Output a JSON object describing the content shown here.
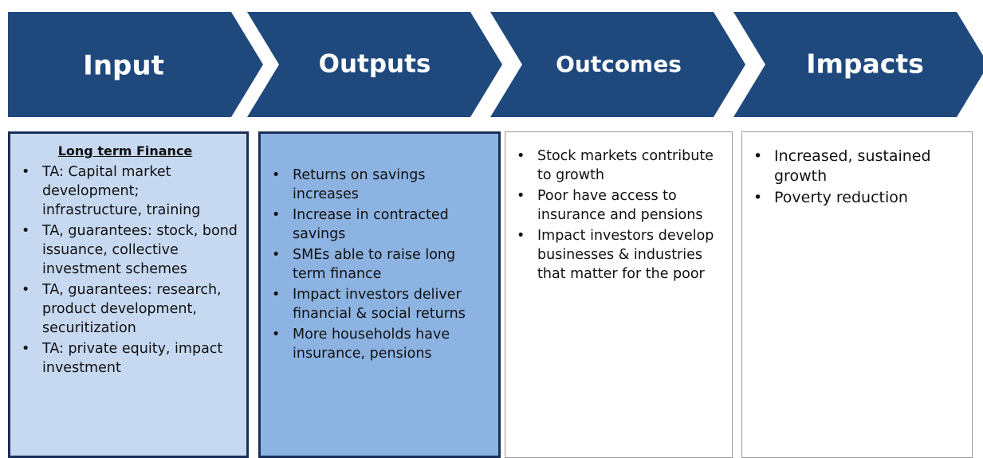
{
  "stages": [
    {
      "header": "Input",
      "title": "Long term Finance",
      "items": [
        "TA: Capital market development; infrastructure, training",
        "TA, guarantees: stock, bond issuance,  collective investment schemes",
        "TA, guarantees:  research, product development, securitization",
        "TA: private equity, impact investment"
      ]
    },
    {
      "header": "Outputs",
      "items": [
        "Returns on savings increases",
        "Increase in contracted savings",
        "SMEs able to raise long term finance",
        "Impact investors deliver financial & social returns",
        "More households have insurance, pensions"
      ]
    },
    {
      "header": "Outcomes",
      "items": [
        "Stock markets contribute to growth",
        "Poor have access to insurance and pensions",
        "Impact investors develop businesses & industries that matter for the poor"
      ]
    },
    {
      "header": "Impacts",
      "items": [
        "Increased, sustained growth",
        "Poverty reduction"
      ]
    }
  ]
}
